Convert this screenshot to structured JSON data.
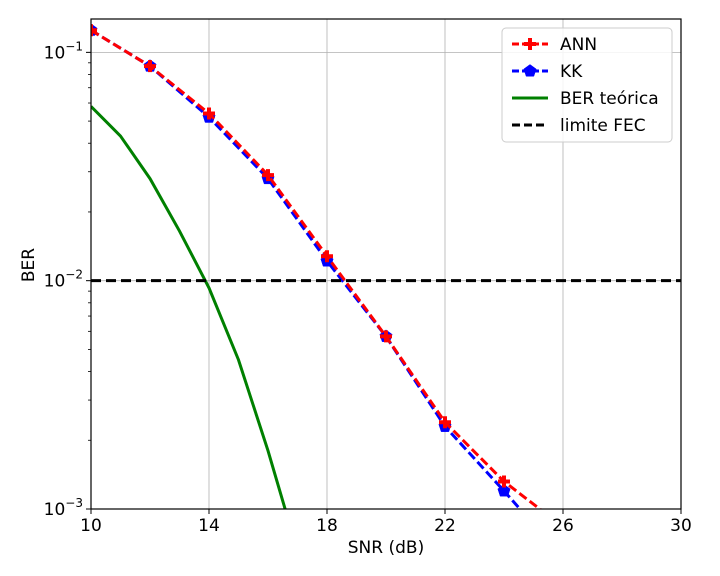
{
  "chart_data": {
    "type": "line",
    "xlabel": "SNR (dB)",
    "ylabel": "BER",
    "xlim": [
      10,
      30
    ],
    "ylim": [
      0.001,
      0.14
    ],
    "yscale": "log",
    "grid": true,
    "legend_position": "top-right",
    "x_ticks": [
      10,
      14,
      18,
      22,
      26,
      30
    ],
    "x_tick_labels": [
      "10",
      "14",
      "18",
      "22",
      "26",
      "30"
    ],
    "y_ticks": [
      {
        "value": 0.1,
        "base": "10",
        "exp": "−1"
      },
      {
        "value": 0.01,
        "base": "10",
        "exp": "−2"
      },
      {
        "value": 0.001,
        "base": "10",
        "exp": "−3"
      }
    ],
    "series": [
      {
        "name": "ANN",
        "color": "#ff0000",
        "style": "dashed",
        "marker": "plus",
        "x": [
          10,
          12,
          14,
          16,
          18,
          20,
          22,
          24,
          25.3
        ],
        "y": [
          0.125,
          0.087,
          0.054,
          0.029,
          0.0128,
          0.0057,
          0.0024,
          0.00132,
          0.00098
        ],
        "marker_x": [
          10,
          12,
          14,
          16,
          18,
          20,
          22,
          24
        ]
      },
      {
        "name": "KK",
        "color": "#0000ff",
        "style": "dashed",
        "marker": "pentagon",
        "x": [
          10,
          12,
          14,
          16,
          18,
          20,
          22,
          24,
          24.6
        ],
        "y": [
          0.125,
          0.087,
          0.052,
          0.028,
          0.0122,
          0.0057,
          0.0023,
          0.0012,
          0.00098
        ],
        "marker_x": [
          10,
          12,
          14,
          16,
          18,
          20,
          22,
          24
        ]
      },
      {
        "name": "BER teórica",
        "color": "#008000",
        "style": "solid",
        "marker": "none",
        "x": [
          10,
          11,
          12,
          13,
          14,
          15,
          16,
          16.6
        ],
        "y": [
          0.058,
          0.043,
          0.028,
          0.0165,
          0.0093,
          0.0045,
          0.0018,
          0.00098
        ],
        "marker_x": []
      },
      {
        "name": "limite FEC",
        "color": "#000000",
        "style": "dashed",
        "marker": "none",
        "x": [
          10,
          30
        ],
        "y": [
          0.01,
          0.01
        ],
        "marker_x": []
      }
    ]
  }
}
